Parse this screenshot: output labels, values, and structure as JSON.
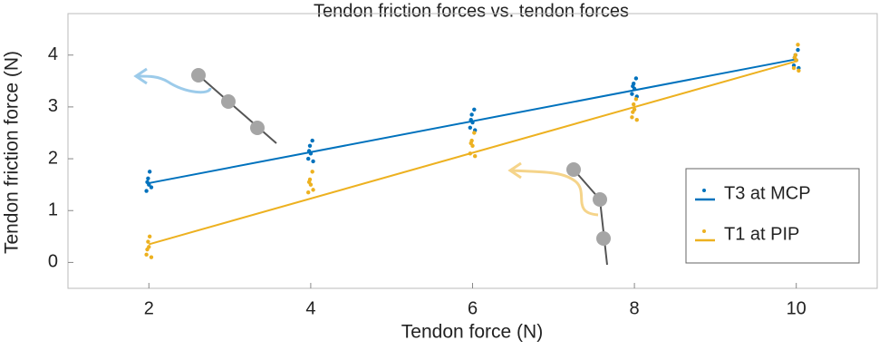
{
  "chart_data": {
    "type": "scatter",
    "title": "Tendon friction forces vs. tendon forces",
    "x_label": "Tendon force (N)",
    "y_label": "Tendon friction force (N)",
    "xlim": [
      1,
      11
    ],
    "ylim": [
      -0.5,
      4.8
    ],
    "xticks": [
      2,
      4,
      6,
      8,
      10
    ],
    "yticks": [
      0,
      1,
      2,
      3,
      4
    ],
    "grid": false,
    "legend": "lower right",
    "series": [
      {
        "name": "T3 at MCP",
        "color": "#0072bd",
        "x": [
          1.97,
          1.99,
          2.0,
          2.01,
          2.03,
          1.98,
          3.97,
          3.99,
          4.0,
          4.02,
          4.03,
          3.98,
          5.97,
          5.99,
          6.0,
          6.02,
          6.03,
          5.98,
          7.97,
          7.99,
          8.0,
          8.02,
          8.03,
          7.98,
          9.97,
          9.99,
          10.0,
          10.02,
          10.03,
          9.98
        ],
        "values": [
          1.38,
          1.62,
          1.5,
          1.75,
          1.45,
          1.55,
          2.0,
          2.25,
          2.1,
          2.35,
          1.95,
          2.15,
          2.6,
          2.85,
          2.7,
          2.95,
          2.55,
          2.75,
          3.25,
          3.45,
          3.35,
          3.55,
          3.2,
          3.4,
          3.8,
          4.0,
          3.9,
          4.1,
          3.75,
          3.95
        ],
        "fit_x": [
          2,
          10
        ],
        "fit_values": [
          1.53,
          3.92
        ]
      },
      {
        "name": "T1 at PIP",
        "color": "#edb120",
        "x": [
          1.97,
          1.99,
          2.0,
          2.01,
          2.03,
          1.98,
          3.97,
          3.99,
          4.0,
          4.02,
          4.03,
          3.98,
          5.97,
          5.99,
          6.0,
          6.02,
          6.03,
          5.98,
          7.97,
          7.99,
          8.0,
          8.02,
          8.03,
          7.98,
          9.97,
          9.99,
          10.0,
          10.02,
          10.03,
          9.98
        ],
        "values": [
          0.15,
          0.4,
          0.3,
          0.5,
          0.1,
          0.25,
          1.35,
          1.6,
          1.5,
          1.75,
          1.4,
          1.55,
          2.1,
          2.35,
          2.25,
          2.5,
          2.05,
          2.3,
          2.8,
          3.05,
          2.95,
          3.15,
          2.75,
          2.9,
          3.75,
          4.0,
          3.9,
          4.2,
          3.7,
          3.95
        ],
        "fit_x": [
          2,
          10
        ],
        "fit_values": [
          0.35,
          3.88
        ]
      }
    ]
  }
}
